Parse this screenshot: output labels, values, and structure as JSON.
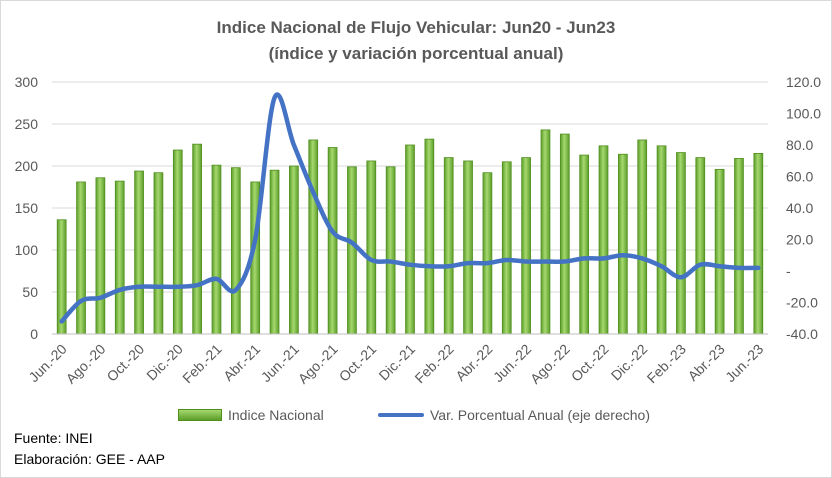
{
  "title_line1": "Indice Nacional de Flujo Vehicular: Jun20 - Jun23",
  "title_line2": "(índice y variación porcentual anual)",
  "legend": {
    "bars": "Indice Nacional",
    "line": "Var. Porcentual Anual (eje derecho)"
  },
  "footer": {
    "source": "Fuente: INEI",
    "credit": "Elaboración: GEE - AAP"
  },
  "colors": {
    "bar_top": "#a6d86f",
    "bar_bottom": "#5c9e2a",
    "bar_edge": "#4f8f1f",
    "line": "#4472c4",
    "grid": "#d9d9d9",
    "text": "#595959"
  },
  "chart_data": {
    "type": "bar",
    "categories": [
      "Jun.20",
      "Jul.20",
      "Ago.20",
      "Sep.20",
      "Oct.20",
      "Nov.20",
      "Dic.20",
      "Ene.21",
      "Feb.21",
      "Mar.21",
      "Abr.21",
      "May.21",
      "Jun.21",
      "Jul.21",
      "Ago.21",
      "Sep.21",
      "Oct.21",
      "Nov.21",
      "Dic.21",
      "Ene.22",
      "Feb.22",
      "Mar.22",
      "Abr.22",
      "May.22",
      "Jun.22",
      "Jul.22",
      "Ago.22",
      "Sep.22",
      "Oct.22",
      "Nov.22",
      "Dic.22",
      "Ene.23",
      "Feb.23",
      "Mar.23",
      "Abr.23",
      "May.23",
      "Jun.23"
    ],
    "x_tick_labels": [
      "Jun.-20",
      "Ago.-20",
      "Oct.-20",
      "Dic.-20",
      "Feb.-21",
      "Abr.-21",
      "Jun.-21",
      "Ago.-21",
      "Oct.-21",
      "Dic.-21",
      "Feb.-22",
      "Abr.-22",
      "Jun.-22",
      "Ago.-22",
      "Oct.-22",
      "Dic.-22",
      "Feb.-23",
      "Abr.-23",
      "Jun.-23"
    ],
    "series": [
      {
        "name": "Indice Nacional",
        "type": "bar",
        "axis": "left",
        "values": [
          136,
          181,
          186,
          182,
          194,
          192,
          219,
          226,
          201,
          198,
          181,
          195,
          200,
          231,
          222,
          199,
          206,
          199,
          225,
          232,
          210,
          206,
          192,
          205,
          210,
          243,
          238,
          213,
          224,
          214,
          231,
          224,
          216,
          210,
          196,
          209,
          215
        ]
      },
      {
        "name": "Var. Porcentual Anual (eje derecho)",
        "type": "line",
        "axis": "right",
        "values": [
          -32,
          -19,
          -17,
          -12,
          -10,
          -10,
          -10,
          -9,
          -5,
          -12,
          20,
          110,
          80,
          50,
          25,
          18,
          7,
          6,
          4,
          3,
          3,
          5,
          5,
          7,
          6,
          6,
          6,
          8,
          8,
          10,
          8,
          3,
          -4,
          4,
          3,
          2,
          2
        ]
      }
    ],
    "ylim_left": [
      0,
      300
    ],
    "yticks_left": [
      "0",
      "50",
      "100",
      "150",
      "200",
      "250",
      "300"
    ],
    "ylim_right": [
      -40,
      120
    ],
    "yticks_right": [
      "-40.0",
      "-20.0",
      "-",
      "20.0",
      "40.0",
      "60.0",
      "80.0",
      "100.0",
      "120.0"
    ],
    "grid": true,
    "legend_position": "bottom"
  }
}
